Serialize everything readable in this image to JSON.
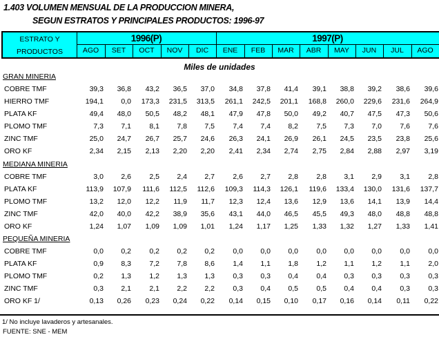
{
  "title": {
    "line1": "1.403  VOLUMEN MENSUAL DE LA PRODUCCION MINERA,",
    "line2": "SEGUN ESTRATOS Y PRINCIPALES PRODUCTOS: 1996-97"
  },
  "header": {
    "stub_line1": "ESTRATO Y",
    "stub_line2": "PRODUCTOS",
    "year1": "1996(P)",
    "year2": "1997(P)",
    "months": [
      "AGO",
      "SET",
      "OCT",
      "NOV",
      "DIC",
      "ENE",
      "FEB",
      "MAR",
      "ABR",
      "MAY",
      "JUN",
      "JUL",
      "AGO"
    ],
    "bg_color": "#00ffff"
  },
  "unit": "Miles de unidades",
  "sections": [
    {
      "name": "GRAN MINERIA",
      "rows": [
        {
          "label": "COBRE TMF",
          "values": [
            "39,3",
            "36,8",
            "43,2",
            "36,5",
            "37,0",
            "34,8",
            "37,8",
            "41,4",
            "39,1",
            "38,8",
            "39,2",
            "38,6",
            "39,6"
          ]
        },
        {
          "label": "HIERRO TMF",
          "values": [
            "194,1",
            "0,0",
            "173,3",
            "231,5",
            "313,5",
            "261,1",
            "242,5",
            "201,1",
            "168,8",
            "260,0",
            "229,6",
            "231,6",
            "264,9"
          ]
        },
        {
          "label": "PLATA KF",
          "values": [
            "49,4",
            "48,0",
            "50,5",
            "48,2",
            "48,1",
            "47,9",
            "47,8",
            "50,0",
            "49,2",
            "40,7",
            "47,5",
            "47,3",
            "50,6"
          ]
        },
        {
          "label": "PLOMO TMF",
          "values": [
            "7,3",
            "7,1",
            "8,1",
            "7,8",
            "7,5",
            "7,4",
            "7,4",
            "8,2",
            "7,5",
            "7,3",
            "7,0",
            "7,6",
            "7,6"
          ]
        },
        {
          "label": "ZINC TMF",
          "values": [
            "25,0",
            "24,7",
            "26,7",
            "25,7",
            "24,6",
            "26,3",
            "24,1",
            "26,9",
            "26,1",
            "24,5",
            "23,5",
            "23,8",
            "25,6"
          ]
        },
        {
          "label": "ORO KF",
          "values": [
            "2,34",
            "2,15",
            "2,13",
            "2,20",
            "2,20",
            "2,41",
            "2,34",
            "2,74",
            "2,75",
            "2,84",
            "2,88",
            "2,97",
            "3,19"
          ]
        }
      ]
    },
    {
      "name": "MEDIANA MINERIA",
      "rows": [
        {
          "label": "COBRE TMF",
          "values": [
            "3,0",
            "2,6",
            "2,5",
            "2,4",
            "2,7",
            "2,6",
            "2,7",
            "2,8",
            "2,8",
            "3,1",
            "2,9",
            "3,1",
            "2,8"
          ]
        },
        {
          "label": "PLATA KF",
          "values": [
            "113,9",
            "107,9",
            "111,6",
            "112,5",
            "112,6",
            "109,3",
            "114,3",
            "126,1",
            "119,6",
            "133,4",
            "130,0",
            "131,6",
            "137,7"
          ]
        },
        {
          "label": "PLOMO TMF",
          "values": [
            "13,2",
            "12,0",
            "12,2",
            "11,9",
            "11,7",
            "12,3",
            "12,4",
            "13,6",
            "12,9",
            "13,6",
            "14,1",
            "13,9",
            "14,4"
          ]
        },
        {
          "label": "ZINC TMF",
          "values": [
            "42,0",
            "40,0",
            "42,2",
            "38,9",
            "35,6",
            "43,1",
            "44,0",
            "46,5",
            "45,5",
            "49,3",
            "48,0",
            "48,8",
            "48,8"
          ]
        },
        {
          "label": "ORO KF",
          "values": [
            "1,24",
            "1,07",
            "1,09",
            "1,09",
            "1,01",
            "1,24",
            "1,17",
            "1,25",
            "1,33",
            "1,32",
            "1,27",
            "1,33",
            "1,41"
          ]
        }
      ]
    },
    {
      "name": "PEQUEÑA MINERIA",
      "rows": [
        {
          "label": "COBRE TMF",
          "values": [
            "0,0",
            "0,2",
            "0,2",
            "0,2",
            "0,2",
            "0,0",
            "0,0",
            "0,0",
            "0,0",
            "0,0",
            "0,0",
            "0,0",
            "0,0"
          ]
        },
        {
          "label": "PLATA KF",
          "values": [
            "0,9",
            "8,3",
            "7,2",
            "7,8",
            "8,6",
            "1,4",
            "1,1",
            "1,8",
            "1,2",
            "1,1",
            "1,2",
            "1,1",
            "2,0"
          ]
        },
        {
          "label": "PLOMO TMF",
          "values": [
            "0,2",
            "1,3",
            "1,2",
            "1,3",
            "1,3",
            "0,3",
            "0,3",
            "0,4",
            "0,4",
            "0,3",
            "0,3",
            "0,3",
            "0,3"
          ]
        },
        {
          "label": "ZINC TMF",
          "values": [
            "0,3",
            "2,1",
            "2,1",
            "2,2",
            "2,2",
            "0,3",
            "0,4",
            "0,5",
            "0,5",
            "0,4",
            "0,4",
            "0,3",
            "0,3"
          ]
        },
        {
          "label": "ORO KF 1/",
          "values": [
            "0,13",
            "0,26",
            "0,23",
            "0,24",
            "0,22",
            "0,14",
            "0,15",
            "0,10",
            "0,17",
            "0,16",
            "0,14",
            "0,11",
            "0,22"
          ]
        }
      ]
    }
  ],
  "footnote": "1/ No incluye lavaderos y artesanales.",
  "source": "FUENTE: SNE - MEM"
}
